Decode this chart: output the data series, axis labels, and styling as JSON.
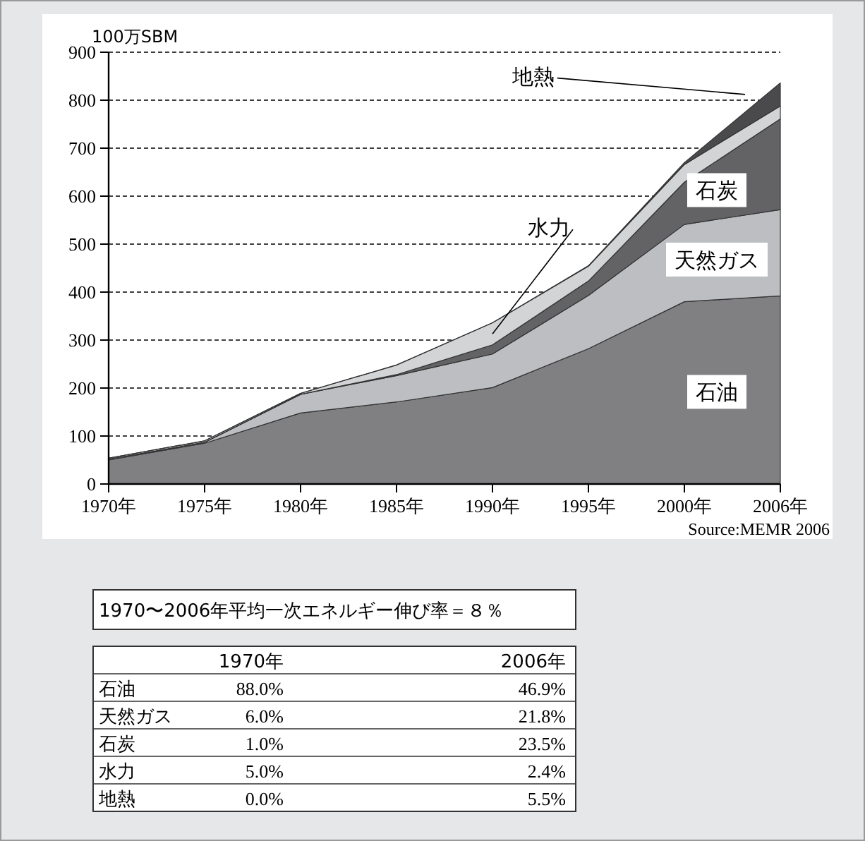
{
  "chart_data": [
    {
      "type": "area",
      "stacked": true,
      "ylabel": "100万SBM",
      "categories": [
        "1970年",
        "1975年",
        "1980年",
        "1985年",
        "1990年",
        "1995年",
        "2000年",
        "2006年"
      ],
      "ylim": [
        0,
        900
      ],
      "yticks": [
        0,
        100,
        200,
        300,
        400,
        500,
        600,
        700,
        800,
        900
      ],
      "grid": "y",
      "series": [
        {
          "name": "石油",
          "color": "#808083",
          "values": [
            50,
            85,
            148,
            171,
            201,
            282,
            380,
            392
          ]
        },
        {
          "name": "天然ガス",
          "color": "#bdbec1",
          "values": [
            2,
            2,
            39,
            55,
            70,
            111,
            161,
            180
          ]
        },
        {
          "name": "石炭",
          "color": "#636366",
          "values": [
            0,
            0,
            0,
            2,
            19,
            30,
            88,
            189
          ]
        },
        {
          "name": "水力",
          "color": "#d3d4d6",
          "values": [
            2,
            3,
            2,
            20,
            46,
            31,
            37,
            27
          ]
        },
        {
          "name": "地熱",
          "color": "#4a4a4c",
          "values": [
            0,
            0,
            0,
            0,
            0,
            1,
            4,
            48
          ]
        }
      ],
      "annotations": [
        "Source:MEMR 2006"
      ]
    },
    {
      "type": "other",
      "title": "1970〜2006年平均一次エネルギー伸び率＝８％",
      "categories": [
        "1970年",
        "2006年"
      ],
      "y_categories": [
        "石油",
        "天然ガス",
        "石炭",
        "水力",
        "地熱"
      ],
      "cell_labels": [
        [
          "88.0%",
          "46.9%"
        ],
        [
          "6.0%",
          "21.8%"
        ],
        [
          "1.0%",
          "23.5%"
        ],
        [
          "5.0%",
          "2.4%"
        ],
        [
          "0.0%",
          "5.5%"
        ]
      ]
    }
  ]
}
